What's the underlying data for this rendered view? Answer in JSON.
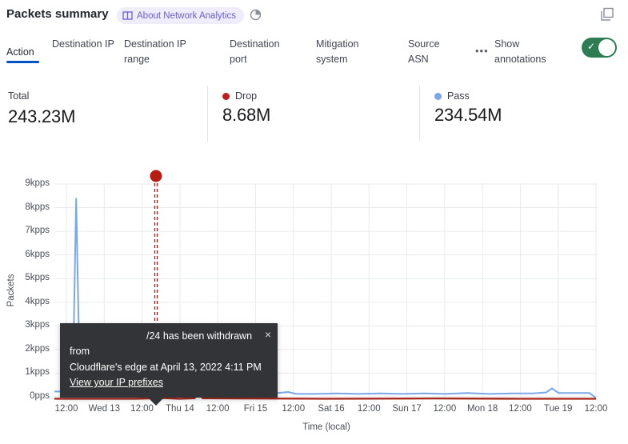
{
  "header": {
    "title": "Packets summary",
    "about_badge_label": "About Network Analytics"
  },
  "icons": {
    "book": "book-icon",
    "time_period": "pie-clock-icon",
    "expand": "overlapping-squares-icon",
    "close": "×",
    "check": "✓",
    "more": "•••"
  },
  "tabs": {
    "items": [
      {
        "label": "Action",
        "active": true
      },
      {
        "label": "Destination IP",
        "active": false
      },
      {
        "label": "Destination IP range",
        "active": false
      },
      {
        "label": "Destination port",
        "active": false
      },
      {
        "label": "Mitigation system",
        "active": false
      },
      {
        "label": "Source ASN",
        "active": false
      }
    ],
    "more_label": "•••",
    "show_annotations_label": "Show annotations",
    "annotations_enabled": true,
    "toggle_color": "#2e7d52"
  },
  "stats": {
    "items": [
      {
        "label": "Total",
        "value": "243.23M",
        "dot_color": null
      },
      {
        "label": "Drop",
        "value": "8.68M",
        "dot_color": "#c21d1d"
      },
      {
        "label": "Pass",
        "value": "234.54M",
        "dot_color": "#7aa7e9"
      }
    ]
  },
  "chart_data": {
    "type": "line",
    "xlabel": "Time (local)",
    "ylabel": "Packets",
    "x_ticks": [
      "12:00",
      "Wed 13",
      "12:00",
      "Thu 14",
      "12:00",
      "Fri 15",
      "12:00",
      "Sat 16",
      "12:00",
      "Sun 17",
      "12:00",
      "Mon 18",
      "12:00",
      "Tue 19",
      "12:00"
    ],
    "y_ticks": [
      "9kpps",
      "8kpps",
      "7kpps",
      "6kpps",
      "5kpps",
      "4kpps",
      "3kpps",
      "2kpps",
      "1kpps",
      "0pps"
    ],
    "ylim_kpps": [
      0,
      9
    ],
    "grid": true,
    "x_unit": "fraction_of_time_axis",
    "y_unit": "kpps",
    "legend": [
      {
        "name": "Drop",
        "color": "#c21d1d"
      },
      {
        "name": "Pass",
        "color": "#7aa7e9"
      }
    ],
    "series": [
      {
        "name": "Pass",
        "color": "#7aa7e9",
        "points": [
          [
            0.0,
            0.32
          ],
          [
            0.026,
            0.32
          ],
          [
            0.03,
            0.15
          ],
          [
            0.034,
            0.9
          ],
          [
            0.04,
            8.38
          ],
          [
            0.046,
            1.6
          ],
          [
            0.051,
            0.45
          ],
          [
            0.07,
            0.42
          ],
          [
            0.076,
            0.22
          ],
          [
            0.095,
            0.2
          ],
          [
            0.11,
            0.22
          ],
          [
            0.124,
            0.34
          ],
          [
            0.132,
            0.22
          ],
          [
            0.15,
            0.2
          ],
          [
            0.168,
            0.3
          ],
          [
            0.176,
            0.2
          ],
          [
            0.21,
            0.22
          ],
          [
            0.24,
            0.2
          ],
          [
            0.27,
            0.22
          ],
          [
            0.3,
            0.2
          ],
          [
            0.325,
            0.32
          ],
          [
            0.335,
            0.22
          ],
          [
            0.36,
            0.2
          ],
          [
            0.395,
            0.22
          ],
          [
            0.43,
            0.3
          ],
          [
            0.445,
            0.22
          ],
          [
            0.48,
            0.22
          ],
          [
            0.52,
            0.24
          ],
          [
            0.56,
            0.22
          ],
          [
            0.6,
            0.24
          ],
          [
            0.64,
            0.22
          ],
          [
            0.68,
            0.24
          ],
          [
            0.72,
            0.22
          ],
          [
            0.76,
            0.26
          ],
          [
            0.8,
            0.22
          ],
          [
            0.84,
            0.24
          ],
          [
            0.88,
            0.24
          ],
          [
            0.905,
            0.28
          ],
          [
            0.916,
            0.45
          ],
          [
            0.928,
            0.26
          ],
          [
            0.955,
            0.26
          ],
          [
            0.985,
            0.26
          ],
          [
            0.997,
            0.05
          ]
        ]
      },
      {
        "name": "Drop",
        "color": "#ab2b1e",
        "points": [
          [
            0.0,
            0.02
          ],
          [
            0.15,
            0.02
          ],
          [
            0.2,
            0.05
          ],
          [
            0.23,
            0.02
          ],
          [
            0.258,
            0.04
          ],
          [
            0.265,
            0.28
          ],
          [
            0.273,
            0.04
          ],
          [
            0.35,
            0.03
          ],
          [
            0.5,
            0.02
          ],
          [
            0.7,
            0.03
          ],
          [
            0.85,
            0.02
          ],
          [
            0.997,
            0.02
          ]
        ]
      }
    ],
    "annotation": {
      "x_fraction": 0.187,
      "marker_color": "#b51d11",
      "line_color": "#9e1a12",
      "text_line1": "/24 has been withdrawn from",
      "text_line2": "Cloudflare's edge at April 13, 2022 4:11 PM",
      "link_text": "View your IP prefixes"
    }
  }
}
